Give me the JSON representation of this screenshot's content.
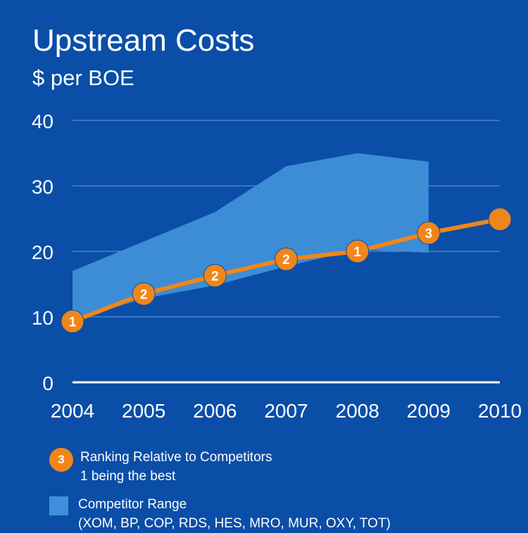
{
  "chart_data": {
    "type": "line",
    "title": "Upstream Costs",
    "subtitle": "$ per BOE",
    "x": [
      "2004",
      "2005",
      "2006",
      "2007",
      "2008",
      "2009",
      "2010"
    ],
    "ylim": [
      0,
      40
    ],
    "yticks": [
      "0",
      "10",
      "20",
      "30",
      "40"
    ],
    "grid": true,
    "series": [
      {
        "name": "Upstream cost",
        "values": [
          9.3,
          13.5,
          16.3,
          18.8,
          20.0,
          22.8,
          24.9
        ],
        "rank_labels": [
          "1",
          "2",
          "2",
          "2",
          "1",
          "3",
          ""
        ],
        "color": "#f0861a"
      }
    ],
    "range": {
      "name": "Competitor Range",
      "x": [
        "2004",
        "2005",
        "2006",
        "2007",
        "2008",
        "2009"
      ],
      "upper": [
        17.0,
        21.5,
        26.0,
        33.0,
        35.0,
        33.7
      ],
      "lower": [
        9.5,
        12.8,
        14.8,
        17.7,
        20.3,
        19.8
      ],
      "color": "#3f8fd8"
    }
  },
  "legend": {
    "ranking": {
      "marker": "3",
      "line1": "Ranking Relative to Competitors",
      "line2": "1 being the best"
    },
    "range": {
      "line1": "Competitor Range",
      "line2": "(XOM, BP, COP, RDS, HES, MRO, MUR, OXY, TOT)"
    }
  }
}
